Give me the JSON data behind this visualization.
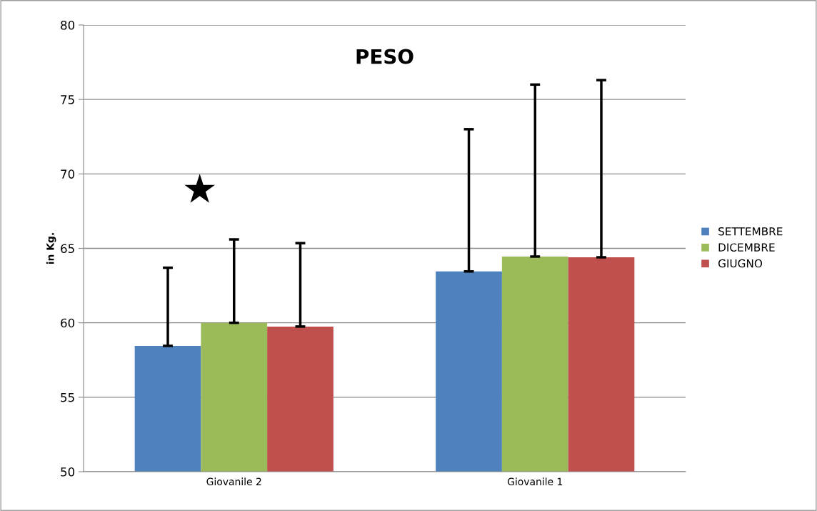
{
  "chart_data": {
    "type": "bar",
    "title": "PESO",
    "ylabel": "in Kg.",
    "categories": [
      "Giovanile 2",
      "Giovanile 1"
    ],
    "series": [
      {
        "name": "SETTEMBRE",
        "color": "#4f81bd",
        "values": [
          58.45,
          63.45
        ],
        "errors": [
          [
            58.45,
            63.7
          ],
          [
            63.45,
            73.0
          ]
        ]
      },
      {
        "name": "DICEMBRE",
        "color": "#9bbb59",
        "values": [
          60.0,
          64.45
        ],
        "errors": [
          [
            60.0,
            65.6
          ],
          [
            64.45,
            76.0
          ]
        ]
      },
      {
        "name": "GIUGNO",
        "color": "#c0504d",
        "values": [
          59.75,
          64.4
        ],
        "errors": [
          [
            59.75,
            65.35
          ],
          [
            64.4,
            76.3
          ]
        ]
      }
    ],
    "annotations": [
      "★"
    ],
    "ylim": [
      50,
      80
    ],
    "yticks": [
      50,
      55,
      60,
      65,
      70,
      75,
      80
    ],
    "grid": "y",
    "legend": "right"
  }
}
